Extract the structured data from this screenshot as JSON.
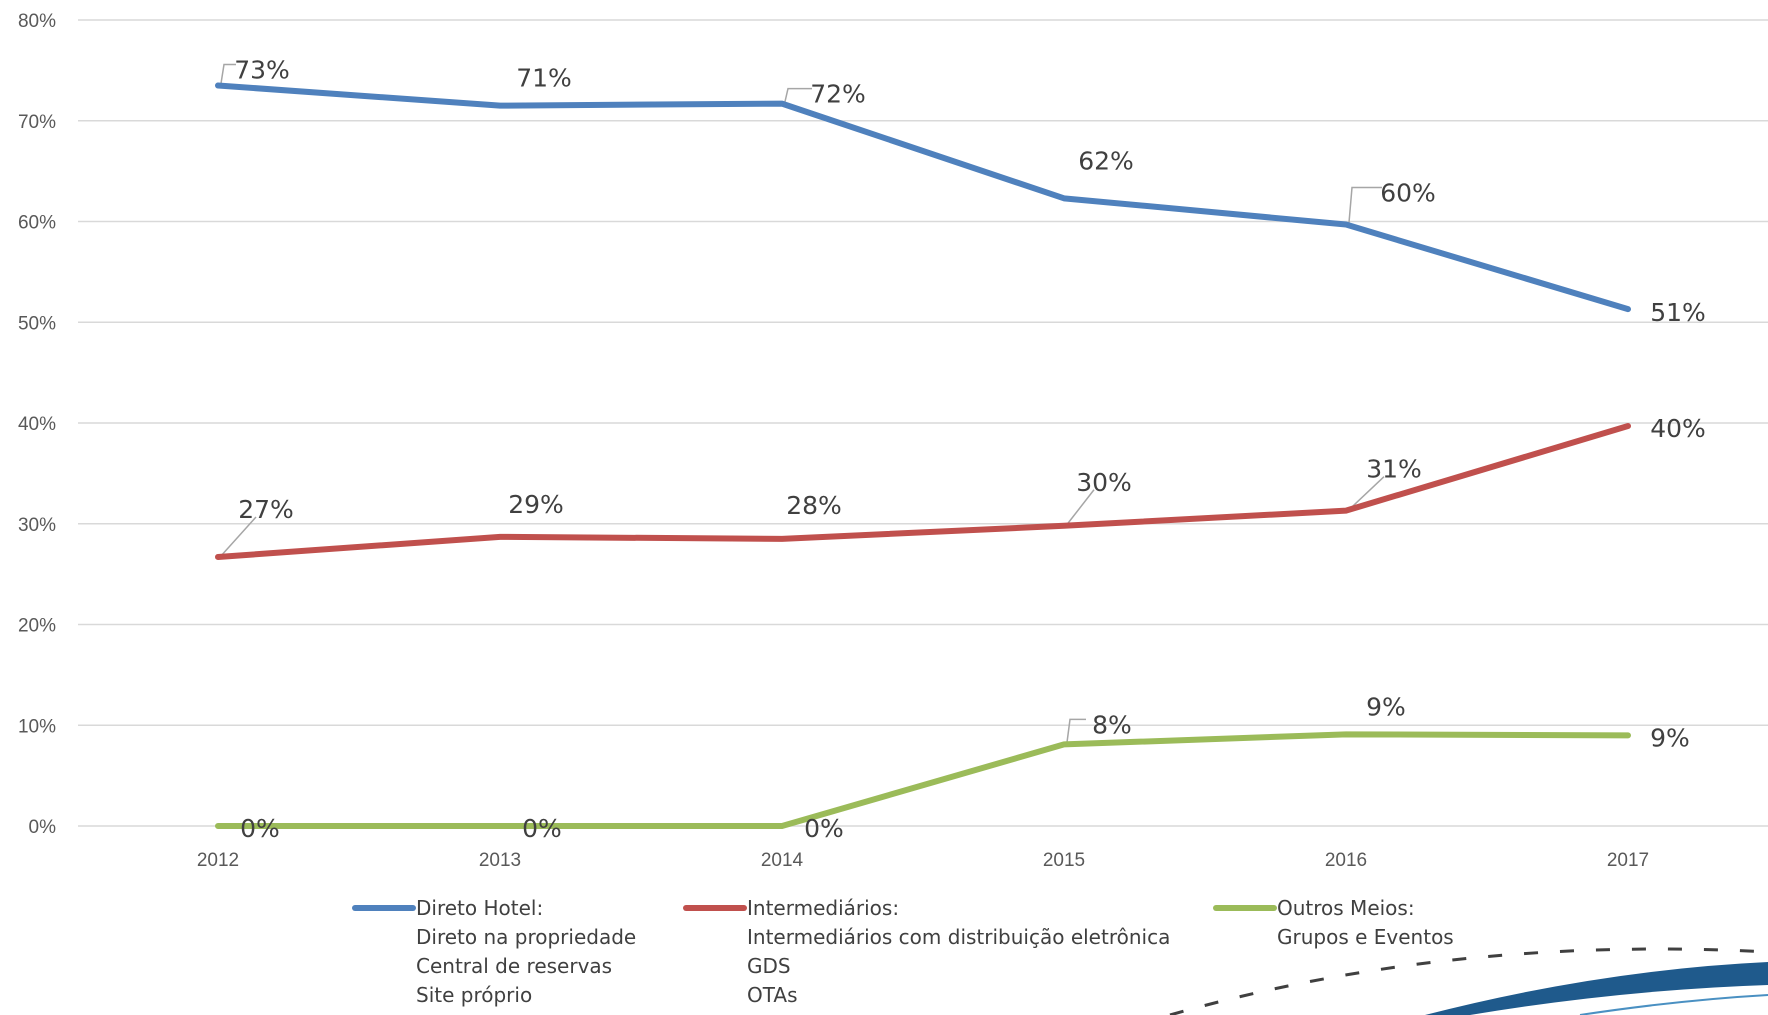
{
  "chart_data": {
    "type": "line",
    "title": "",
    "xlabel": "",
    "ylabel": "",
    "categories": [
      "2012",
      "2013",
      "2014",
      "2015",
      "2016",
      "2017"
    ],
    "y_ticks": [
      "0%",
      "10%",
      "20%",
      "30%",
      "40%",
      "50%",
      "60%",
      "70%",
      "80%"
    ],
    "ylim": [
      0,
      80
    ],
    "grid": true,
    "legend_position": "bottom",
    "series": [
      {
        "name": "Direto Hotel:",
        "legend_lines": [
          "Direto Hotel:",
          "Direto na propriedade",
          "Central de reservas",
          "Site próprio"
        ],
        "color": "#4f81bd",
        "values": [
          73.5,
          71.5,
          71.7,
          62.3,
          59.7,
          51.3
        ],
        "labels": [
          "73%",
          "71%",
          "72%",
          "62%",
          "60%",
          "51%"
        ]
      },
      {
        "name": "Intermediários:",
        "legend_lines": [
          "Intermediários:",
          "Intermediários com distribuição eletrônica",
          "GDS",
          "OTAs"
        ],
        "color": "#c0504d",
        "values": [
          26.7,
          28.7,
          28.5,
          29.8,
          31.3,
          39.7
        ],
        "labels": [
          "27%",
          "29%",
          "28%",
          "30%",
          "31%",
          "40%"
        ]
      },
      {
        "name": "Outros Meios:",
        "legend_lines": [
          "Outros Meios:",
          "Grupos e Eventos"
        ],
        "color": "#9bbb59",
        "values": [
          0,
          0,
          0,
          8.1,
          9.1,
          9.0
        ],
        "labels": [
          "0%",
          "0%",
          "0%",
          "8%",
          "9%",
          "9%"
        ]
      }
    ]
  },
  "decoration": {
    "arc_colors": [
      "#1f5a8c",
      "#4a90c2",
      "#404040"
    ]
  }
}
